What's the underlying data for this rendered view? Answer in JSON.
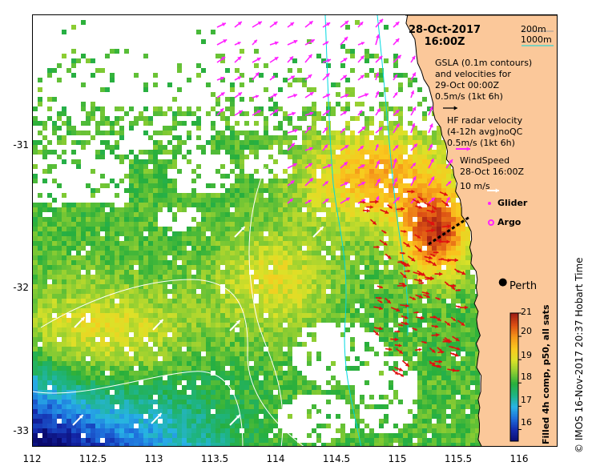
{
  "title": {
    "date": "28-Oct-2017",
    "time": "16:00Z"
  },
  "axes": {
    "x_ticks": [
      "112",
      "112.5",
      "113",
      "113.5",
      "114",
      "114.5",
      "115",
      "115.5",
      "116"
    ],
    "y_ticks": [
      "-31",
      "-32",
      "-33"
    ],
    "x_range": [
      112,
      116.3
    ],
    "y_range": [
      -33.1,
      -30.1
    ]
  },
  "legend": {
    "depth_lines": [
      "200m",
      "1000m"
    ],
    "gsla_text": [
      "GSLA (0.1m contours)",
      "and velocities for",
      "29-Oct 00:00Z",
      "0.5m/s (1kt 6h)"
    ],
    "hf_text": [
      "HF radar velocity",
      "(4-12h avg)noQC",
      "0.5m/s (1kt 6h)"
    ],
    "wind_text": [
      "WindSpeed",
      "28-Oct 16:00Z",
      "10 m/s"
    ],
    "glider": "Glider",
    "argo": "Argo"
  },
  "colorbar": {
    "title": "Filled 4h comp, p50, all sats",
    "labels": [
      "21",
      "20",
      "19",
      "18",
      "17",
      "16"
    ],
    "values": [
      21,
      20,
      19,
      18,
      17,
      16
    ],
    "range": [
      15.5,
      21
    ]
  },
  "city": {
    "name": "Perth",
    "lon": 115.86,
    "lat": -31.95
  },
  "copyright": "©  IMOS 16-Nov-2017 20:37 Hobart Time",
  "colors": {
    "land": "#fbc89a",
    "hf_arrows": "#e01010",
    "gsla_arrows": "#ff22ff",
    "wind_arrows": "#ffffff",
    "depth_200": "#00d8e0"
  }
}
